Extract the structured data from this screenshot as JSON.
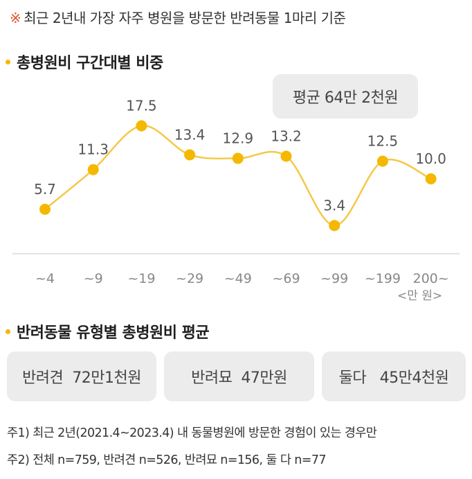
{
  "header_note": {
    "mark": "※",
    "text": "최근 2년내 가장 자주 병원을 방문한 반려동물 1마리 기준"
  },
  "section1": {
    "title": "총병원비 구간대별 비중"
  },
  "average_box": "평균 64만 2천원",
  "unit_label": "<만 원>",
  "chart_data": {
    "type": "line",
    "title": "총병원비 구간대별 비중",
    "categories": [
      "~4",
      "~9",
      "~19",
      "~29",
      "~49",
      "~69",
      "~99",
      "~199",
      "200~"
    ],
    "values": [
      5.7,
      11.3,
      17.5,
      13.4,
      12.9,
      13.2,
      3.4,
      12.5,
      10.0
    ],
    "value_labels": [
      "5.7",
      "11.3",
      "17.5",
      "13.4",
      "12.9",
      "13.2",
      "3.4",
      "12.5",
      "10.0"
    ],
    "x_unit": "<만 원>",
    "ylim": [
      0,
      20
    ],
    "grid": false,
    "legend": "none",
    "colors": {
      "line": "#f5c846",
      "marker": "#f5b800",
      "label": "#555555",
      "axis": "#d9d9d9",
      "tick": "#888888"
    }
  },
  "section2": {
    "title": "반려동물 유형별 총병원비 평균"
  },
  "type_cards": [
    {
      "label": "반려견  72만1천원"
    },
    {
      "label": "반려묘  47만원"
    },
    {
      "label": "둘다   45만4천원"
    }
  ],
  "footnotes": [
    "주1) 최근 2년(2021.4~2023.4) 내 동물병원에 방문한 경험이 있는 경우만",
    "주2) 전체 n=759, 반려견 n=526, 반려묘 n=156, 둘 다 n=77"
  ]
}
